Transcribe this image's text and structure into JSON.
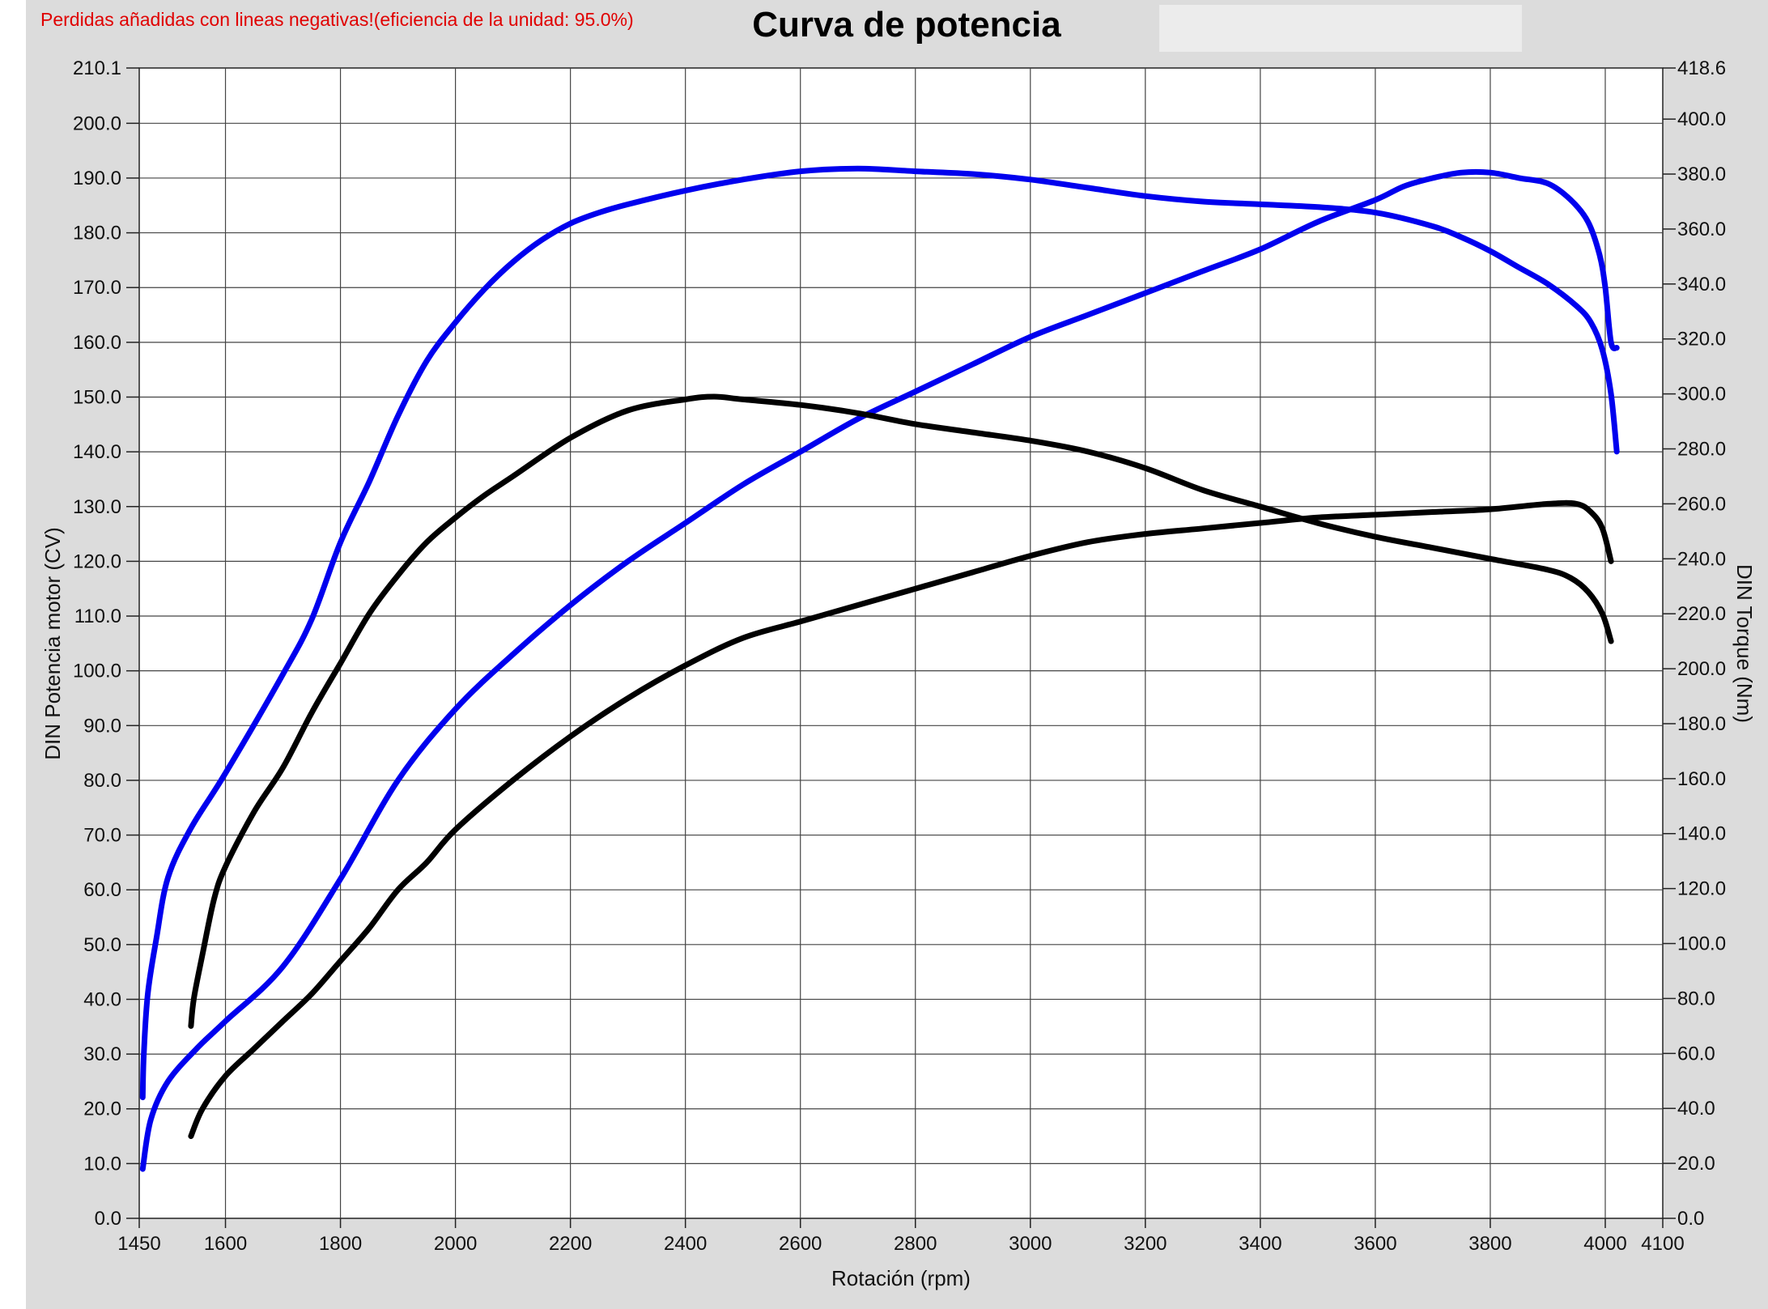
{
  "chart_data": {
    "type": "line",
    "title": "Curva de potencia",
    "note": "Perdidas añadidas con lineas negativas!(eficiencia de la unidad: 95.0%)",
    "xlabel": "Rotación (rpm)",
    "ylabel_left": "DIN Potencia motor (CV)",
    "ylabel_right": "DIN Torque (Nm)",
    "xlim": [
      1450,
      4100
    ],
    "ylim_left": [
      0,
      210.1
    ],
    "ylim_right": [
      0,
      418.6
    ],
    "x_ticks": [
      "1450",
      "1600",
      "1800",
      "2000",
      "2200",
      "2400",
      "2600",
      "2800",
      "3000",
      "3200",
      "3400",
      "3600",
      "3800",
      "4000",
      "4100"
    ],
    "y_left_ticks": [
      "0.0",
      "10.0",
      "20.0",
      "30.0",
      "40.0",
      "50.0",
      "60.0",
      "70.0",
      "80.0",
      "90.0",
      "100.0",
      "110.0",
      "120.0",
      "130.0",
      "140.0",
      "150.0",
      "160.0",
      "170.0",
      "180.0",
      "190.0",
      "200.0",
      "210.1"
    ],
    "y_right_ticks": [
      "0.0",
      "20.0",
      "40.0",
      "60.0",
      "80.0",
      "100.0",
      "120.0",
      "140.0",
      "160.0",
      "180.0",
      "200.0",
      "220.0",
      "240.0",
      "260.0",
      "280.0",
      "300.0",
      "320.0",
      "340.0",
      "360.0",
      "380.0",
      "400.0",
      "418.6"
    ],
    "grid": true,
    "background_color": "#dcdcdc",
    "plot_background": "#ffffff",
    "series": [
      {
        "color": "#0000ee",
        "axis": "right",
        "points": [
          [
            1456,
            44
          ],
          [
            1458,
            60
          ],
          [
            1465,
            82
          ],
          [
            1480,
            102
          ],
          [
            1500,
            124
          ],
          [
            1540,
            142
          ],
          [
            1600,
            162
          ],
          [
            1700,
            198
          ],
          [
            1750,
            218
          ],
          [
            1800,
            246
          ],
          [
            1850,
            268
          ],
          [
            1900,
            292
          ],
          [
            1950,
            312
          ],
          [
            2000,
            326
          ],
          [
            2050,
            338
          ],
          [
            2100,
            348
          ],
          [
            2150,
            356
          ],
          [
            2200,
            362
          ],
          [
            2250,
            366
          ],
          [
            2300,
            369
          ],
          [
            2400,
            374
          ],
          [
            2500,
            378
          ],
          [
            2600,
            381
          ],
          [
            2700,
            382
          ],
          [
            2800,
            381
          ],
          [
            2900,
            380
          ],
          [
            3000,
            378
          ],
          [
            3100,
            375
          ],
          [
            3200,
            372
          ],
          [
            3300,
            370
          ],
          [
            3400,
            369
          ],
          [
            3500,
            368
          ],
          [
            3600,
            366
          ],
          [
            3700,
            361
          ],
          [
            3750,
            357
          ],
          [
            3800,
            352
          ],
          [
            3850,
            346
          ],
          [
            3900,
            340
          ],
          [
            3950,
            332
          ],
          [
            3975,
            326
          ],
          [
            3995,
            316
          ],
          [
            4010,
            300
          ],
          [
            4020,
            279
          ]
        ]
      },
      {
        "color": "#0000ee",
        "axis": "left",
        "points": [
          [
            1456,
            9
          ],
          [
            1470,
            18
          ],
          [
            1500,
            25
          ],
          [
            1550,
            31
          ],
          [
            1600,
            36
          ],
          [
            1700,
            46
          ],
          [
            1800,
            62
          ],
          [
            1900,
            80
          ],
          [
            2000,
            93
          ],
          [
            2100,
            103
          ],
          [
            2200,
            112
          ],
          [
            2300,
            120
          ],
          [
            2400,
            127
          ],
          [
            2500,
            134
          ],
          [
            2600,
            140
          ],
          [
            2700,
            146
          ],
          [
            2800,
            151
          ],
          [
            2900,
            156
          ],
          [
            3000,
            161
          ],
          [
            3100,
            165
          ],
          [
            3200,
            169
          ],
          [
            3300,
            173
          ],
          [
            3400,
            177
          ],
          [
            3500,
            182
          ],
          [
            3600,
            186
          ],
          [
            3650,
            188.5
          ],
          [
            3700,
            190
          ],
          [
            3750,
            191
          ],
          [
            3800,
            191
          ],
          [
            3850,
            190
          ],
          [
            3900,
            189
          ],
          [
            3940,
            186
          ],
          [
            3970,
            182
          ],
          [
            3990,
            176
          ],
          [
            4000,
            170
          ],
          [
            4010,
            160
          ],
          [
            4020,
            159
          ]
        ]
      },
      {
        "color": "#000000",
        "axis": "right",
        "points": [
          [
            1540,
            70
          ],
          [
            1545,
            80
          ],
          [
            1560,
            96
          ],
          [
            1580,
            116
          ],
          [
            1600,
            128
          ],
          [
            1650,
            148
          ],
          [
            1700,
            164
          ],
          [
            1750,
            184
          ],
          [
            1800,
            202
          ],
          [
            1850,
            220
          ],
          [
            1900,
            234
          ],
          [
            1950,
            246
          ],
          [
            2000,
            255
          ],
          [
            2050,
            263
          ],
          [
            2100,
            270
          ],
          [
            2200,
            284
          ],
          [
            2300,
            294
          ],
          [
            2400,
            298
          ],
          [
            2450,
            299
          ],
          [
            2500,
            298
          ],
          [
            2600,
            296
          ],
          [
            2700,
            293
          ],
          [
            2800,
            289
          ],
          [
            2900,
            286
          ],
          [
            3000,
            283
          ],
          [
            3100,
            279
          ],
          [
            3200,
            273
          ],
          [
            3300,
            265
          ],
          [
            3400,
            259
          ],
          [
            3500,
            253
          ],
          [
            3600,
            248
          ],
          [
            3700,
            244
          ],
          [
            3800,
            240
          ],
          [
            3900,
            236
          ],
          [
            3940,
            233
          ],
          [
            3970,
            228
          ],
          [
            3995,
            220
          ],
          [
            4010,
            210
          ]
        ]
      },
      {
        "color": "#000000",
        "axis": "left",
        "points": [
          [
            1540,
            15
          ],
          [
            1560,
            20
          ],
          [
            1600,
            26
          ],
          [
            1650,
            31
          ],
          [
            1700,
            36
          ],
          [
            1750,
            41
          ],
          [
            1800,
            47
          ],
          [
            1850,
            53
          ],
          [
            1900,
            60
          ],
          [
            1950,
            65
          ],
          [
            2000,
            71
          ],
          [
            2100,
            80
          ],
          [
            2200,
            88
          ],
          [
            2300,
            95
          ],
          [
            2400,
            101
          ],
          [
            2500,
            106
          ],
          [
            2600,
            109
          ],
          [
            2700,
            112
          ],
          [
            2800,
            115
          ],
          [
            2900,
            118
          ],
          [
            3000,
            121
          ],
          [
            3100,
            123.5
          ],
          [
            3200,
            125
          ],
          [
            3300,
            126
          ],
          [
            3400,
            127
          ],
          [
            3500,
            128
          ],
          [
            3600,
            128.5
          ],
          [
            3700,
            129
          ],
          [
            3800,
            129.5
          ],
          [
            3900,
            130.5
          ],
          [
            3950,
            130.5
          ],
          [
            3975,
            129
          ],
          [
            3995,
            126
          ],
          [
            4010,
            120
          ]
        ]
      }
    ]
  }
}
